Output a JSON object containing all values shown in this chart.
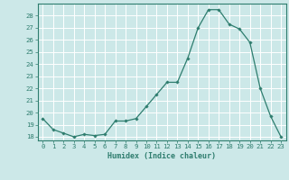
{
  "x": [
    0,
    1,
    2,
    3,
    4,
    5,
    6,
    7,
    8,
    9,
    10,
    11,
    12,
    13,
    14,
    15,
    16,
    17,
    18,
    19,
    20,
    21,
    22,
    23
  ],
  "y": [
    19.5,
    18.6,
    18.3,
    18.0,
    18.2,
    18.1,
    18.2,
    19.3,
    19.3,
    19.5,
    20.5,
    21.5,
    22.5,
    22.5,
    24.5,
    27.0,
    28.5,
    28.5,
    27.3,
    26.9,
    25.8,
    22.0,
    19.7,
    18.0
  ],
  "xlim": [
    -0.5,
    23.5
  ],
  "ylim": [
    17.7,
    29.0
  ],
  "yticks": [
    18,
    19,
    20,
    21,
    22,
    23,
    24,
    25,
    26,
    27,
    28
  ],
  "xticks": [
    0,
    1,
    2,
    3,
    4,
    5,
    6,
    7,
    8,
    9,
    10,
    11,
    12,
    13,
    14,
    15,
    16,
    17,
    18,
    19,
    20,
    21,
    22,
    23
  ],
  "xlabel": "Humidex (Indice chaleur)",
  "line_color": "#2e7d6e",
  "marker": "D",
  "marker_size": 1.8,
  "bg_color": "#cce8e8",
  "grid_color": "#ffffff",
  "axis_color": "#2e7d6e",
  "tick_fontsize": 5.2,
  "xlabel_fontsize": 6.0
}
